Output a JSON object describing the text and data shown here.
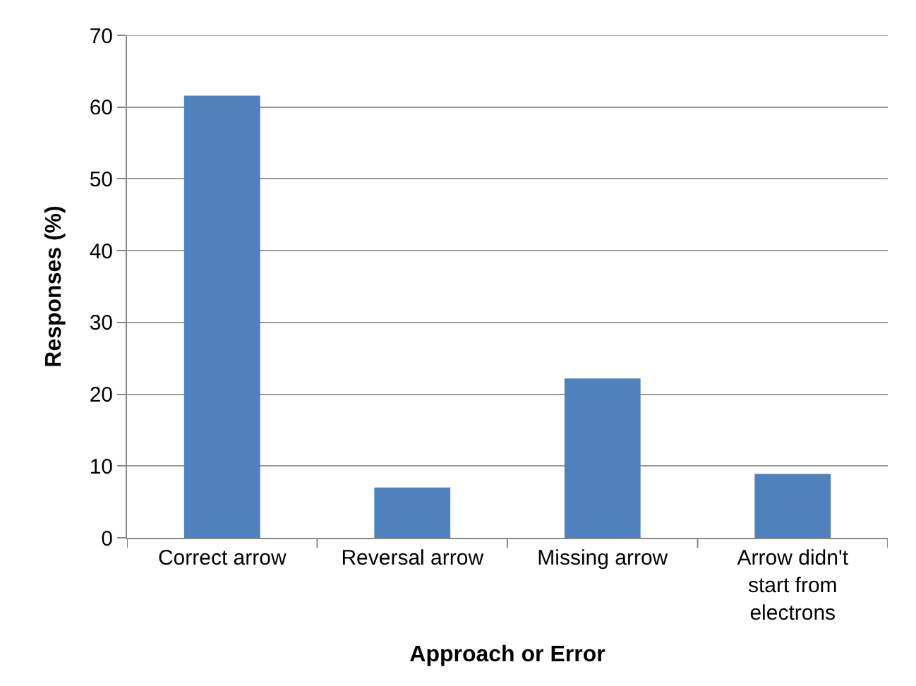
{
  "chart_data": {
    "type": "bar",
    "xlabel": "Approach or Error",
    "ylabel": "Responses (%)",
    "categories": [
      "Correct arrow",
      "Reversal arrow",
      "Missing arrow",
      "Arrow didn't start from electrons"
    ],
    "values": [
      61.6,
      7.0,
      22.2,
      8.9
    ],
    "color": "#4f81bd",
    "ylim": [
      0,
      70
    ],
    "yticks": [
      0,
      10,
      20,
      30,
      40,
      50,
      60,
      70
    ],
    "grid": "y"
  }
}
